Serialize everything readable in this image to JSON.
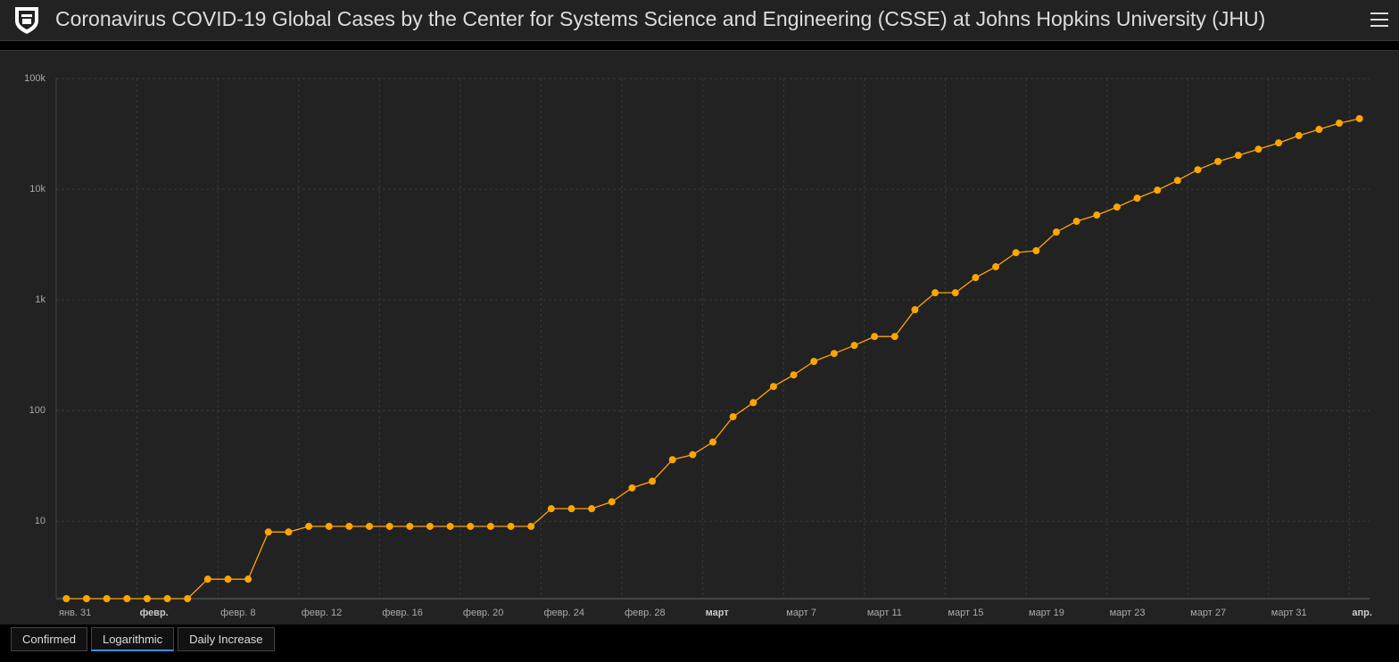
{
  "header": {
    "title": "Coronavirus COVID-19 Global Cases by the Center for Systems Science and Engineering (CSSE) at Johns Hopkins University (JHU)"
  },
  "chart_data": {
    "type": "line",
    "color": "#ffa500",
    "log_scale": true,
    "grid": true,
    "x": [
      "01-31",
      "02-01",
      "02-02",
      "02-03",
      "02-04",
      "02-05",
      "02-06",
      "02-07",
      "02-08",
      "02-09",
      "02-10",
      "02-11",
      "02-12",
      "02-13",
      "02-14",
      "02-15",
      "02-16",
      "02-17",
      "02-18",
      "02-19",
      "02-20",
      "02-21",
      "02-22",
      "02-23",
      "02-24",
      "02-25",
      "02-26",
      "02-27",
      "02-28",
      "02-29",
      "03-01",
      "03-02",
      "03-03",
      "03-04",
      "03-05",
      "03-06",
      "03-07",
      "03-08",
      "03-09",
      "03-10",
      "03-11",
      "03-12",
      "03-13",
      "03-14",
      "03-15",
      "03-16",
      "03-17",
      "03-18",
      "03-19",
      "03-20",
      "03-21",
      "03-22",
      "03-23",
      "03-24",
      "03-25",
      "03-26",
      "03-27",
      "03-28",
      "03-29",
      "03-30",
      "03-31",
      "04-01",
      "04-02",
      "04-03",
      "04-04"
    ],
    "values": [
      2,
      2,
      2,
      2,
      2,
      2,
      2,
      3,
      3,
      3,
      8,
      8,
      9,
      9,
      9,
      9,
      9,
      9,
      9,
      9,
      9,
      9,
      9,
      9,
      13,
      13,
      13,
      15,
      20,
      23,
      36,
      40,
      52,
      88,
      118,
      165,
      210,
      278,
      328,
      388,
      467,
      467,
      815,
      1160,
      1160,
      1590,
      1990,
      2670,
      2780,
      4100,
      5130,
      5840,
      6900,
      8300,
      9800,
      12000,
      15000,
      17800,
      20200,
      23000,
      26200,
      30500,
      34700,
      39500,
      43400
    ],
    "xlim": [
      "01-31",
      "04-05"
    ],
    "xticks": [
      {
        "value": "01-31",
        "label": "янв. 31"
      },
      {
        "value": "02-04",
        "label": "февр."
      },
      {
        "value": "02-08",
        "label": "февр. 8"
      },
      {
        "value": "02-12",
        "label": "февр. 12"
      },
      {
        "value": "02-16",
        "label": "февр. 16"
      },
      {
        "value": "02-20",
        "label": "февр. 20"
      },
      {
        "value": "02-24",
        "label": "февр. 24"
      },
      {
        "value": "02-28",
        "label": "февр. 28"
      },
      {
        "value": "03-03",
        "label": "март"
      },
      {
        "value": "03-07",
        "label": "март 7"
      },
      {
        "value": "03-11",
        "label": "март 11"
      },
      {
        "value": "03-15",
        "label": "март 15"
      },
      {
        "value": "03-19",
        "label": "март 19"
      },
      {
        "value": "03-23",
        "label": "март 23"
      },
      {
        "value": "03-27",
        "label": "март 27"
      },
      {
        "value": "03-31",
        "label": "март 31"
      },
      {
        "value": "04-04",
        "label": "апр."
      }
    ],
    "ylim": [
      2,
      100000
    ],
    "yticks": [
      10,
      100,
      {
        "value": 1000,
        "label": "1k"
      },
      {
        "value": 10000,
        "label": "10k"
      },
      {
        "value": 100000,
        "label": "100k"
      }
    ]
  },
  "tabs": [
    "Confirmed",
    "Logarithmic",
    "Daily Increase"
  ]
}
